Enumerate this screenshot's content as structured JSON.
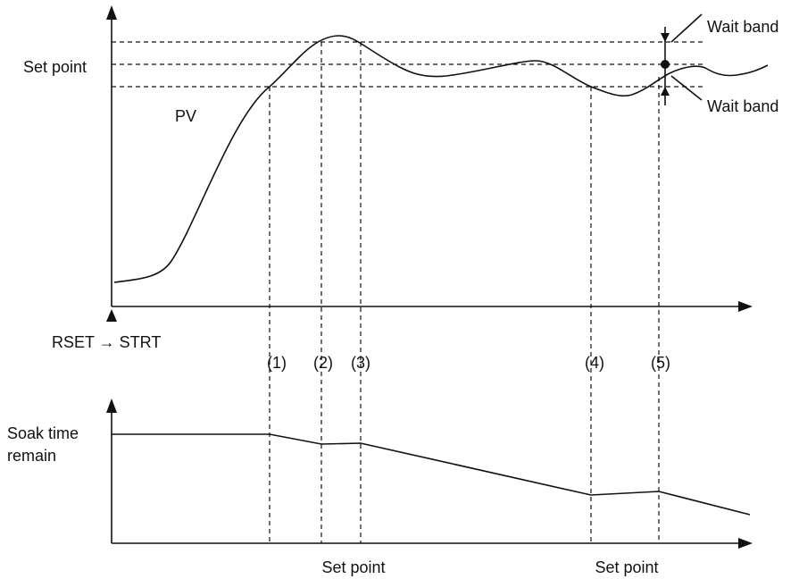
{
  "top_graph": {
    "set_point_label": "Set point",
    "pv_label": "PV",
    "wait_band_labels": [
      "Wait band",
      "Wait band"
    ],
    "start_label": "RSET → STRT"
  },
  "markers": [
    "(1)",
    "(2)",
    "(3)",
    "(4)",
    "(5)"
  ],
  "bottom_graph": {
    "y_label_lines": [
      "Soak time",
      "remain"
    ],
    "x_labels": [
      "Set point",
      "Set point"
    ]
  }
}
